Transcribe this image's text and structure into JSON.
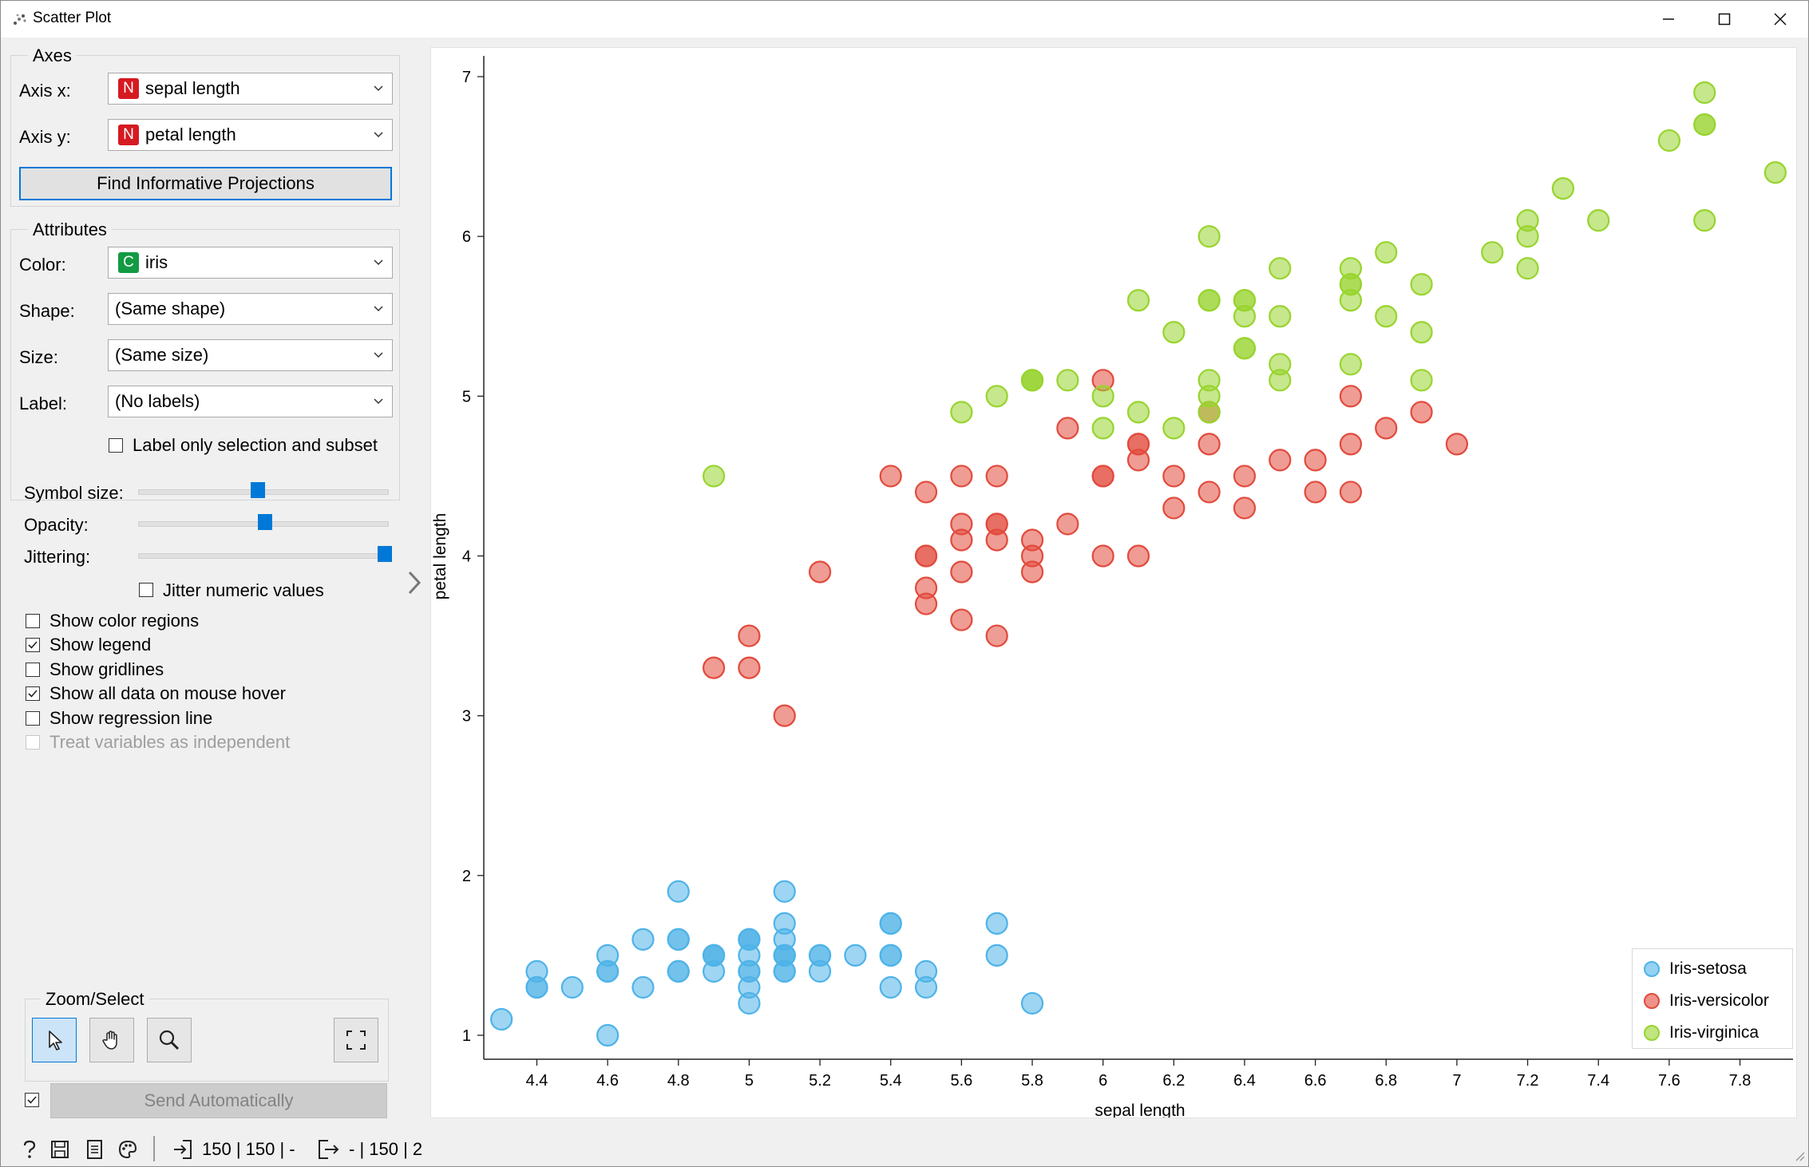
{
  "window": {
    "title": "Scatter Plot",
    "minimize_icon": "minimize-icon",
    "maximize_icon": "maximize-icon",
    "close_icon": "close-icon"
  },
  "axes_group": {
    "title": "Axes",
    "x_label": "Axis x:",
    "x_badge": "N",
    "x_value": "sepal length",
    "y_label": "Axis y:",
    "y_badge": "N",
    "y_value": "petal length",
    "find_button": "Find Informative Projections"
  },
  "attributes_group": {
    "title": "Attributes",
    "color_label": "Color:",
    "color_badge": "C",
    "color_value": "iris",
    "shape_label": "Shape:",
    "shape_value": "(Same shape)",
    "size_label": "Size:",
    "size_value": "(Same size)",
    "label_label": "Label:",
    "label_value": "(No labels)",
    "label_only_selection": "Label only selection and subset",
    "label_only_selection_checked": false
  },
  "sliders": {
    "symbol_size_label": "Symbol size:",
    "symbol_size_fraction": 0.47,
    "opacity_label": "Opacity:",
    "opacity_fraction": 0.5,
    "jittering_label": "Jittering:",
    "jittering_fraction": 1.0,
    "jitter_numeric": "Jitter numeric values",
    "jitter_numeric_checked": false
  },
  "options": [
    {
      "label": "Show color regions",
      "checked": false,
      "disabled": false
    },
    {
      "label": "Show legend",
      "checked": true,
      "disabled": false
    },
    {
      "label": "Show gridlines",
      "checked": false,
      "disabled": false
    },
    {
      "label": "Show all data on mouse hover",
      "checked": true,
      "disabled": false
    },
    {
      "label": "Show regression line",
      "checked": false,
      "disabled": false
    },
    {
      "label": "Treat variables as independent",
      "checked": false,
      "disabled": true
    }
  ],
  "zoom_group": {
    "title": "Zoom/Select",
    "tools": [
      "pointer-icon",
      "hand-icon",
      "zoom-icon",
      "fit-icon"
    ]
  },
  "send": {
    "label": "Send Automatically",
    "checked": true
  },
  "status": {
    "input_text": "150 | 150 | -",
    "output_text": "- | 150 | 2"
  },
  "colors": {
    "setosa": "#4eb3e8",
    "versicolor": "#e24a3c",
    "virginica": "#98d42e",
    "accent": "#0078d7",
    "badge_numeric": "#d61a22",
    "badge_categorical": "#139a43"
  },
  "chart_data": {
    "type": "scatter",
    "xlabel": "sepal length",
    "ylabel": "petal length",
    "xlim": [
      4.25,
      7.95
    ],
    "ylim": [
      0.85,
      7.1
    ],
    "xticks": [
      4.4,
      4.6,
      4.8,
      5,
      5.2,
      5.4,
      5.6,
      5.8,
      6,
      6.2,
      6.4,
      6.6,
      6.8,
      7,
      7.2,
      7.4,
      7.6,
      7.8
    ],
    "xtick_labels": [
      "4.4",
      "4.6",
      "4.8",
      "5",
      "5.2",
      "5.4",
      "5.6",
      "5.8",
      "6",
      "6.2",
      "6.4",
      "6.6",
      "6.8",
      "7",
      "7.2",
      "7.4",
      "7.6",
      "7.8"
    ],
    "yticks": [
      1,
      2,
      3,
      4,
      5,
      6,
      7
    ],
    "ytick_labels": [
      "1",
      "2",
      "3",
      "4",
      "5",
      "6",
      "7"
    ],
    "grid": false,
    "legend_position": "bottom-right",
    "series": [
      {
        "name": "Iris-setosa",
        "color": "#4eb3e8",
        "points": [
          [
            5.1,
            1.4
          ],
          [
            4.9,
            1.4
          ],
          [
            4.7,
            1.3
          ],
          [
            4.6,
            1.5
          ],
          [
            5.0,
            1.4
          ],
          [
            5.4,
            1.7
          ],
          [
            4.6,
            1.4
          ],
          [
            5.0,
            1.5
          ],
          [
            4.4,
            1.4
          ],
          [
            4.9,
            1.5
          ],
          [
            5.4,
            1.5
          ],
          [
            4.8,
            1.6
          ],
          [
            4.8,
            1.4
          ],
          [
            4.3,
            1.1
          ],
          [
            5.8,
            1.2
          ],
          [
            5.7,
            1.5
          ],
          [
            5.4,
            1.3
          ],
          [
            5.1,
            1.4
          ],
          [
            5.7,
            1.7
          ],
          [
            5.1,
            1.5
          ],
          [
            5.4,
            1.7
          ],
          [
            5.1,
            1.5
          ],
          [
            4.6,
            1.0
          ],
          [
            5.1,
            1.7
          ],
          [
            4.8,
            1.9
          ],
          [
            5.0,
            1.6
          ],
          [
            5.0,
            1.6
          ],
          [
            5.2,
            1.5
          ],
          [
            5.2,
            1.4
          ],
          [
            4.7,
            1.6
          ],
          [
            4.8,
            1.6
          ],
          [
            5.4,
            1.5
          ],
          [
            5.2,
            1.5
          ],
          [
            5.5,
            1.4
          ],
          [
            4.9,
            1.5
          ],
          [
            5.0,
            1.2
          ],
          [
            5.5,
            1.3
          ],
          [
            4.9,
            1.5
          ],
          [
            4.4,
            1.3
          ],
          [
            5.1,
            1.5
          ],
          [
            5.0,
            1.3
          ],
          [
            4.5,
            1.3
          ],
          [
            4.4,
            1.3
          ],
          [
            5.0,
            1.6
          ],
          [
            5.1,
            1.9
          ],
          [
            4.8,
            1.4
          ],
          [
            5.1,
            1.6
          ],
          [
            4.6,
            1.4
          ],
          [
            5.3,
            1.5
          ],
          [
            5.0,
            1.4
          ]
        ]
      },
      {
        "name": "Iris-versicolor",
        "color": "#e24a3c",
        "points": [
          [
            7.0,
            4.7
          ],
          [
            6.4,
            4.5
          ],
          [
            6.9,
            4.9
          ],
          [
            5.5,
            4.0
          ],
          [
            6.5,
            4.6
          ],
          [
            5.7,
            4.5
          ],
          [
            6.3,
            4.7
          ],
          [
            4.9,
            3.3
          ],
          [
            6.6,
            4.6
          ],
          [
            5.2,
            3.9
          ],
          [
            5.0,
            3.5
          ],
          [
            5.9,
            4.2
          ],
          [
            6.0,
            4.0
          ],
          [
            6.1,
            4.7
          ],
          [
            5.6,
            3.6
          ],
          [
            6.7,
            4.4
          ],
          [
            5.6,
            4.5
          ],
          [
            5.8,
            4.1
          ],
          [
            6.2,
            4.5
          ],
          [
            5.6,
            3.9
          ],
          [
            5.9,
            4.8
          ],
          [
            6.1,
            4.0
          ],
          [
            6.3,
            4.9
          ],
          [
            6.1,
            4.7
          ],
          [
            6.4,
            4.3
          ],
          [
            6.6,
            4.4
          ],
          [
            6.8,
            4.8
          ],
          [
            6.7,
            5.0
          ],
          [
            6.0,
            4.5
          ],
          [
            5.7,
            3.5
          ],
          [
            5.5,
            3.8
          ],
          [
            5.5,
            3.7
          ],
          [
            5.8,
            3.9
          ],
          [
            6.0,
            5.1
          ],
          [
            5.4,
            4.5
          ],
          [
            6.0,
            4.5
          ],
          [
            6.7,
            4.7
          ],
          [
            6.3,
            4.4
          ],
          [
            5.6,
            4.1
          ],
          [
            5.5,
            4.0
          ],
          [
            5.5,
            4.4
          ],
          [
            6.1,
            4.6
          ],
          [
            5.8,
            4.0
          ],
          [
            5.0,
            3.3
          ],
          [
            5.6,
            4.2
          ],
          [
            5.7,
            4.2
          ],
          [
            5.7,
            4.2
          ],
          [
            6.2,
            4.3
          ],
          [
            5.1,
            3.0
          ],
          [
            5.7,
            4.1
          ]
        ]
      },
      {
        "name": "Iris-virginica",
        "color": "#98d42e",
        "points": [
          [
            6.3,
            6.0
          ],
          [
            5.8,
            5.1
          ],
          [
            7.1,
            5.9
          ],
          [
            6.3,
            5.6
          ],
          [
            6.5,
            5.8
          ],
          [
            7.6,
            6.6
          ],
          [
            4.9,
            4.5
          ],
          [
            7.3,
            6.3
          ],
          [
            6.7,
            5.8
          ],
          [
            7.2,
            6.1
          ],
          [
            6.5,
            5.1
          ],
          [
            6.4,
            5.3
          ],
          [
            6.8,
            5.5
          ],
          [
            5.7,
            5.0
          ],
          [
            5.8,
            5.1
          ],
          [
            6.4,
            5.3
          ],
          [
            6.5,
            5.5
          ],
          [
            7.7,
            6.7
          ],
          [
            7.7,
            6.9
          ],
          [
            6.0,
            5.0
          ],
          [
            6.9,
            5.7
          ],
          [
            5.6,
            4.9
          ],
          [
            7.7,
            6.7
          ],
          [
            6.3,
            4.9
          ],
          [
            6.7,
            5.7
          ],
          [
            7.2,
            6.0
          ],
          [
            6.2,
            4.8
          ],
          [
            6.1,
            4.9
          ],
          [
            6.4,
            5.6
          ],
          [
            7.2,
            5.8
          ],
          [
            7.4,
            6.1
          ],
          [
            7.9,
            6.4
          ],
          [
            6.4,
            5.6
          ],
          [
            6.3,
            5.1
          ],
          [
            6.1,
            5.6
          ],
          [
            7.7,
            6.1
          ],
          [
            6.3,
            5.6
          ],
          [
            6.4,
            5.5
          ],
          [
            6.0,
            4.8
          ],
          [
            6.9,
            5.4
          ],
          [
            6.7,
            5.6
          ],
          [
            6.9,
            5.1
          ],
          [
            5.8,
            5.1
          ],
          [
            6.8,
            5.9
          ],
          [
            6.7,
            5.7
          ],
          [
            6.7,
            5.2
          ],
          [
            6.3,
            5.0
          ],
          [
            6.5,
            5.2
          ],
          [
            6.2,
            5.4
          ],
          [
            5.9,
            5.1
          ]
        ]
      }
    ]
  }
}
